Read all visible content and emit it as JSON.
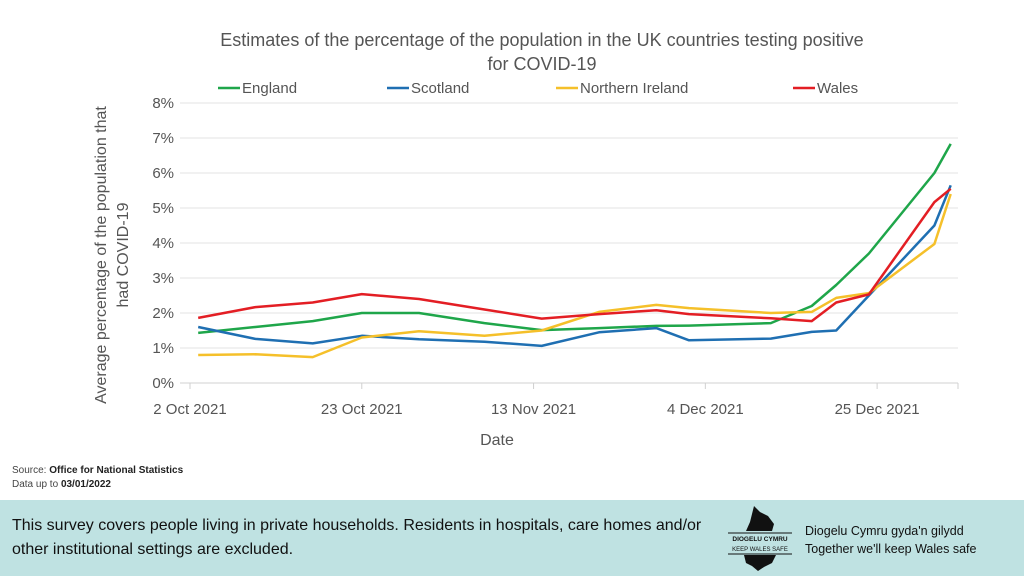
{
  "source_label": "Source:",
  "source": "Office for National Statistics",
  "data_up_to_label": "Data up to",
  "data_up_to": "03/01/2022",
  "footer": {
    "note": "This survey covers people living in private households. Residents in hospitals, care homes and/or other institutional settings are excluded.",
    "logo_text": [
      "DIOGELU CYMRU",
      "KEEP WALES SAFE"
    ],
    "tagline_cy": "Diogelu Cymru gyda'n gilydd",
    "tagline_en": "Together we'll keep Wales safe"
  },
  "chart_data": {
    "type": "line",
    "title": [
      "Estimates of the percentage of the population in the UK countries testing positive",
      "for COVID-19"
    ],
    "xlabel": "Date",
    "ylabel": [
      "Average percentage of the population that",
      "had COVID-19"
    ],
    "ylim": [
      0,
      8
    ],
    "yticks": [
      "0%",
      "1%",
      "2%",
      "3%",
      "4%",
      "5%",
      "6%",
      "7%",
      "8%"
    ],
    "xticks": [
      {
        "date": "2021-10-02",
        "label": "2 Oct 2021"
      },
      {
        "date": "2021-10-23",
        "label": "23 Oct 2021"
      },
      {
        "date": "2021-11-13",
        "label": "13 Nov 2021"
      },
      {
        "date": "2021-12-04",
        "label": "4 Dec 2021"
      },
      {
        "date": "2021-12-25",
        "label": "25 Dec 2021"
      }
    ],
    "grid": true,
    "legend": "top",
    "x": [
      "2021-10-03",
      "2021-10-10",
      "2021-10-17",
      "2021-10-23",
      "2021-10-30",
      "2021-11-07",
      "2021-11-14",
      "2021-11-21",
      "2021-11-28",
      "2021-12-02",
      "2021-12-12",
      "2021-12-17",
      "2021-12-20",
      "2021-12-24",
      "2022-01-01",
      "2022-01-03"
    ],
    "series": [
      {
        "name": "England",
        "color": "#1fa64a",
        "values": [
          1.43,
          1.6,
          1.77,
          2.0,
          2.0,
          1.71,
          1.51,
          1.57,
          1.63,
          1.64,
          1.71,
          2.2,
          2.8,
          3.7,
          6.0,
          6.83
        ]
      },
      {
        "name": "Scotland",
        "color": "#1f6fb2",
        "values": [
          1.6,
          1.26,
          1.13,
          1.35,
          1.25,
          1.18,
          1.06,
          1.45,
          1.57,
          1.22,
          1.27,
          1.46,
          1.5,
          2.5,
          4.5,
          5.65
        ]
      },
      {
        "name": "Northern Ireland",
        "color": "#f5c02a",
        "values": [
          0.8,
          0.82,
          0.74,
          1.3,
          1.48,
          1.35,
          1.5,
          2.03,
          2.23,
          2.14,
          2.0,
          2.03,
          2.43,
          2.57,
          3.97,
          5.4
        ]
      },
      {
        "name": "Wales",
        "color": "#e31e24",
        "values": [
          1.86,
          2.17,
          2.3,
          2.54,
          2.4,
          2.1,
          1.84,
          1.97,
          2.08,
          1.97,
          1.85,
          1.77,
          2.3,
          2.53,
          5.17,
          5.55
        ]
      }
    ]
  }
}
